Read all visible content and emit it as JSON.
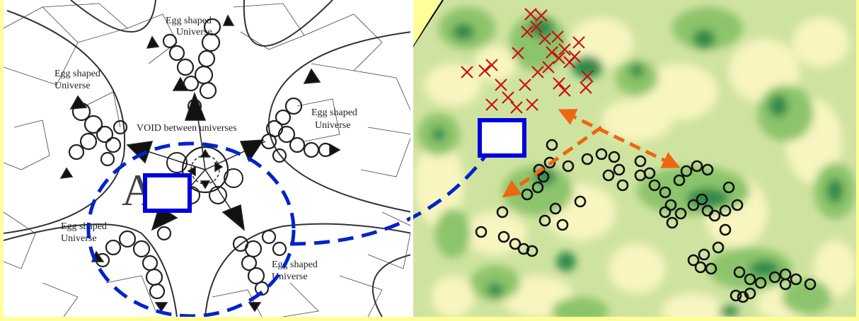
{
  "left_panel": {
    "labels": {
      "egg_top_line1": "Egg shaped",
      "egg_top_line2": "Universe",
      "egg_upper_left_line1": "Egg shaped",
      "egg_upper_left_line2": "Universe",
      "egg_right_line1": "Egg shaped",
      "egg_right_line2": "Universe",
      "egg_lower_left_line1": "Egg shaped",
      "egg_lower_left_line2": "Universe",
      "egg_lower_right_line1": "Egg shaped",
      "egg_lower_right_line2": "Universe",
      "void": "VOID between universes",
      "center_letters": "AC"
    }
  },
  "colors": {
    "highlight_box": "#0000dd",
    "dashed_link": "#0022cc",
    "red_cross": "#cc1111",
    "orange_arrow": "#ee6611",
    "map_light": "#f8f5c0",
    "map_mid": "#cfe3a0",
    "map_green": "#8cc46c",
    "map_dark": "#2f8a4a",
    "yellow_frame": "#ffff99"
  },
  "icons": [
    "triangle-arrow-icon",
    "cross-marker-icon",
    "circle-marker-icon",
    "dashed-double-arrow-icon"
  ]
}
